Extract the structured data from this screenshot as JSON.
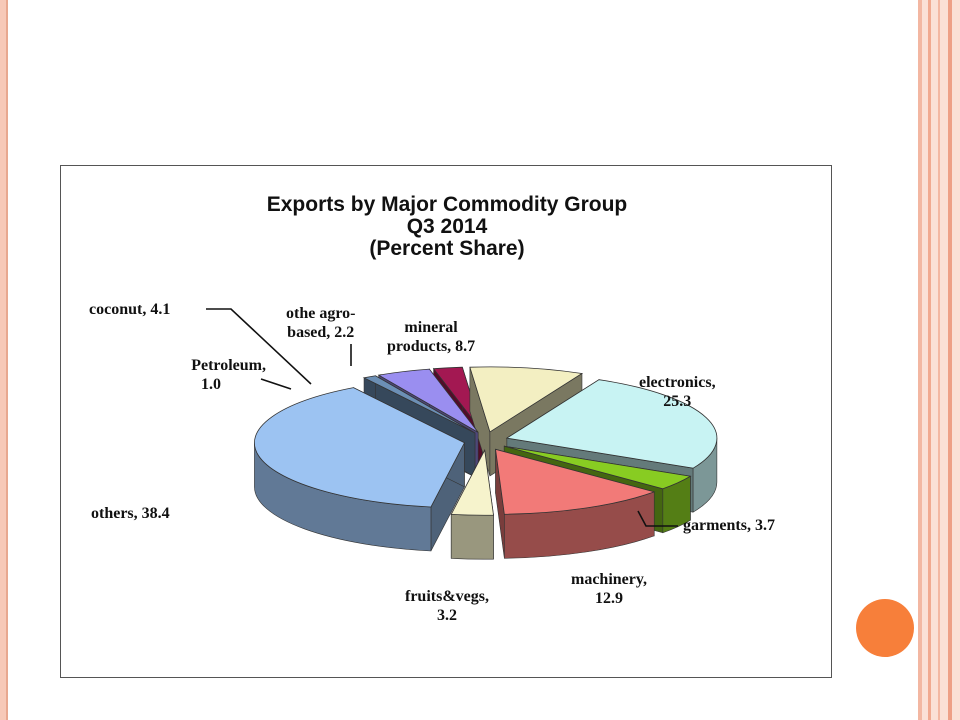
{
  "chart_data": {
    "type": "pie",
    "title": "Exports by Major Commodity Group",
    "subtitle_1": "Q3 2014",
    "subtitle_2": "(Percent Share)",
    "slices": [
      {
        "label": "electronics",
        "value": 25.3,
        "display_1": "electronics,",
        "display_2": "25.3",
        "color": "#c8f3f3"
      },
      {
        "label": "garments",
        "value": 3.7,
        "display_1": "garments, 3.7",
        "display_2": "",
        "color": "#88cc22"
      },
      {
        "label": "machinery",
        "value": 12.9,
        "display_1": "machinery,",
        "display_2": "12.9",
        "color": "#f27a78"
      },
      {
        "label": "fruits&vegs",
        "value": 3.2,
        "display_1": "fruits&vegs,",
        "display_2": "3.2",
        "color": "#f6f3cc"
      },
      {
        "label": "others",
        "value": 38.4,
        "display_1": "others, 38.4",
        "display_2": "",
        "color": "#9cc3f2"
      },
      {
        "label": "Petroleum",
        "value": 1.0,
        "display_1": "Petroleum,",
        "display_2": "1.0",
        "color": "#6c8fb5"
      },
      {
        "label": "coconut",
        "value": 4.1,
        "display_1": "coconut, 4.1",
        "display_2": "",
        "color": "#9a8ef0"
      },
      {
        "label": "othe agro-based",
        "value": 2.2,
        "display_1": "othe agro-",
        "display_2": "based, 2.2",
        "color": "#a31852"
      },
      {
        "label": "mineral products",
        "value": 8.7,
        "display_1": "mineral",
        "display_2": "products, 8.7",
        "color": "#f3efc2"
      }
    ]
  }
}
